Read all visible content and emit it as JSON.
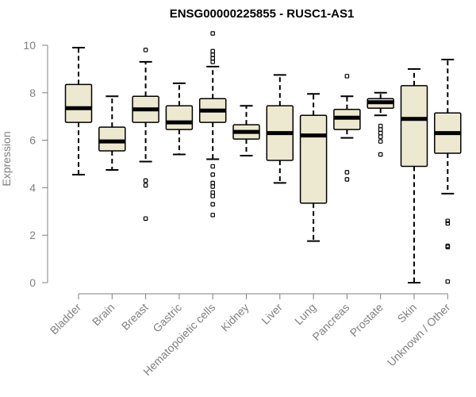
{
  "chart_data": {
    "type": "boxplot",
    "title": "ENSG00000225855 - RUSC1-AS1",
    "xlabel": "",
    "ylabel": "Expression",
    "ylim": [
      0,
      10.5
    ],
    "yticks": [
      0,
      2,
      4,
      6,
      8,
      10
    ],
    "categories": [
      "Bladder",
      "Brain",
      "Breast",
      "Gastric",
      "Hematopoietic cells",
      "Kidney",
      "Liver",
      "Lung",
      "Pancreas",
      "Prostate",
      "Skin",
      "Unknown / Other"
    ],
    "boxes": [
      {
        "whisker_low": 4.55,
        "q1": 6.75,
        "median": 7.35,
        "q3": 8.35,
        "whisker_high": 9.9,
        "outliers": []
      },
      {
        "whisker_low": 4.75,
        "q1": 5.55,
        "median": 5.95,
        "q3": 6.55,
        "whisker_high": 7.85,
        "outliers": []
      },
      {
        "whisker_low": 5.1,
        "q1": 6.75,
        "median": 7.3,
        "q3": 7.85,
        "whisker_high": 9.3,
        "outliers": [
          9.8,
          4.3,
          4.1,
          2.7
        ]
      },
      {
        "whisker_low": 5.4,
        "q1": 6.45,
        "median": 6.75,
        "q3": 7.45,
        "whisker_high": 8.4,
        "outliers": []
      },
      {
        "whisker_low": 5.2,
        "q1": 6.75,
        "median": 7.25,
        "q3": 7.75,
        "whisker_high": 9.1,
        "outliers": [
          10.5,
          9.75,
          9.6,
          9.45,
          9.3,
          4.9,
          4.55,
          4.2,
          4.05,
          3.8,
          3.65,
          3.3,
          2.85
        ]
      },
      {
        "whisker_low": 5.35,
        "q1": 6.05,
        "median": 6.35,
        "q3": 6.65,
        "whisker_high": 7.45,
        "outliers": []
      },
      {
        "whisker_low": 4.2,
        "q1": 5.15,
        "median": 6.3,
        "q3": 7.45,
        "whisker_high": 8.75,
        "outliers": []
      },
      {
        "whisker_low": 1.75,
        "q1": 3.35,
        "median": 6.2,
        "q3": 7.05,
        "whisker_high": 7.95,
        "outliers": []
      },
      {
        "whisker_low": 6.1,
        "q1": 6.45,
        "median": 6.95,
        "q3": 7.3,
        "whisker_high": 7.85,
        "outliers": [
          8.7,
          4.65,
          4.35
        ]
      },
      {
        "whisker_low": 7.05,
        "q1": 7.35,
        "median": 7.6,
        "q3": 7.75,
        "whisker_high": 8.0,
        "outliers": [
          6.6,
          6.45,
          6.3,
          6.15,
          5.95,
          5.4
        ]
      },
      {
        "whisker_low": 0.0,
        "q1": 4.9,
        "median": 6.9,
        "q3": 8.3,
        "whisker_high": 9.0,
        "outliers": []
      },
      {
        "whisker_low": 3.75,
        "q1": 5.45,
        "median": 6.3,
        "q3": 7.15,
        "whisker_high": 9.4,
        "outliers": [
          2.6,
          2.5,
          1.55,
          1.5,
          0.05
        ]
      }
    ],
    "colors": {
      "box_fill": "#ede8d0",
      "stroke": "#000000",
      "axis": "#808080",
      "text": "#808080",
      "title": "#000000"
    }
  }
}
